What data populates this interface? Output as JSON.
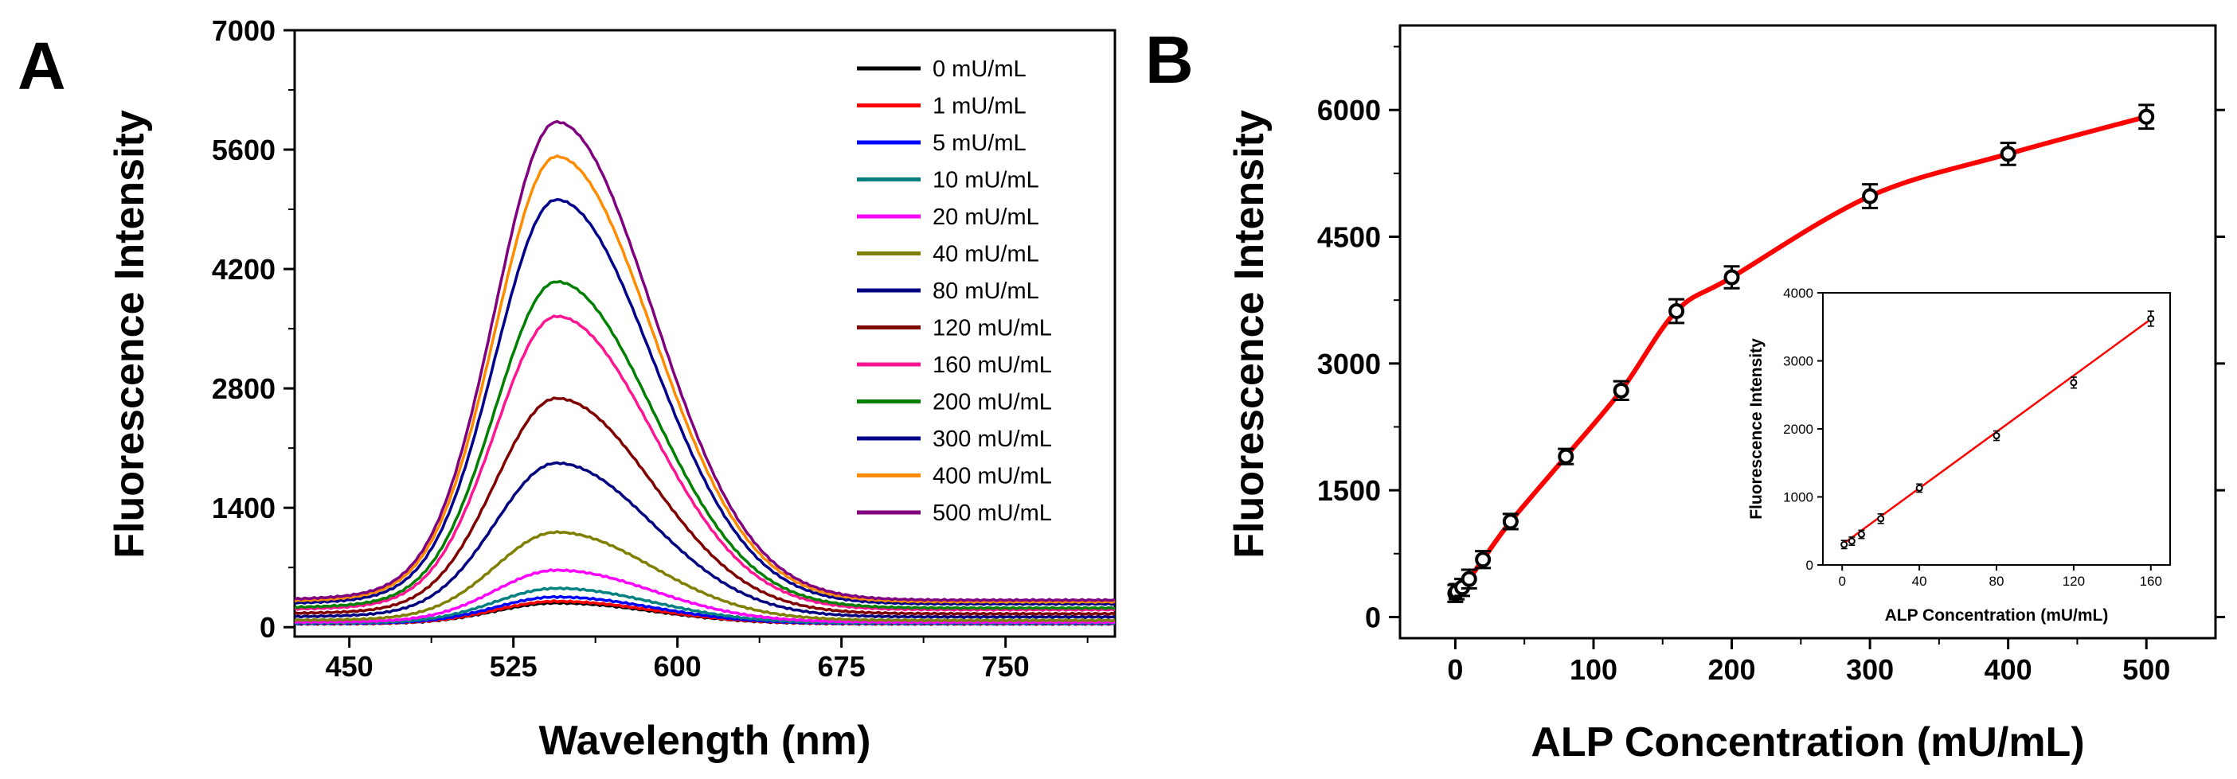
{
  "chart_data": [
    {
      "type": "line",
      "panel_label": "A",
      "xlabel": "Wavelength (nm)",
      "ylabel": "Fluorescence Intensity",
      "xlim": [
        425,
        800
      ],
      "ylim": [
        -110,
        7000
      ],
      "xticks": [
        450,
        525,
        600,
        675,
        750
      ],
      "yticks": [
        0,
        1400,
        2800,
        4200,
        5600,
        7000
      ],
      "series": [
        {
          "name": "0 mU/mL",
          "peak": 280,
          "color": "#000000"
        },
        {
          "name": "1 mU/mL",
          "peak": 300,
          "color": "#ff0000"
        },
        {
          "name": "5 mU/mL",
          "peak": 350,
          "color": "#0000ff"
        },
        {
          "name": "10 mU/mL",
          "peak": 450,
          "color": "#008080"
        },
        {
          "name": "20 mU/mL",
          "peak": 660,
          "color": "#ff00ff"
        },
        {
          "name": "40 mU/mL",
          "peak": 1100,
          "color": "#808000"
        },
        {
          "name": "80 mU/mL",
          "peak": 1900,
          "color": "#000080"
        },
        {
          "name": "120 mU/mL",
          "peak": 2650,
          "color": "#800000"
        },
        {
          "name": "160 mU/mL",
          "peak": 3600,
          "color": "#ff1493"
        },
        {
          "name": "200 mU/mL",
          "peak": 4000,
          "color": "#008000"
        },
        {
          "name": "300 mU/mL",
          "peak": 4950,
          "color": "#00008b"
        },
        {
          "name": "400 mU/mL",
          "peak": 5450,
          "color": "#ff8c00"
        },
        {
          "name": "500 mU/mL",
          "peak": 5850,
          "color": "#800080"
        }
      ],
      "peak_wavelength": 545
    },
    {
      "type": "scatter",
      "panel_label": "B",
      "xlabel": "ALP Concentration  (mU/mL)",
      "ylabel": "Fluorescence Intensity",
      "xlim": [
        -40,
        550
      ],
      "ylim": [
        -250,
        7000
      ],
      "xticks": [
        0,
        100,
        200,
        300,
        400,
        500
      ],
      "yticks": [
        0,
        1500,
        3000,
        4500,
        6000
      ],
      "points": [
        {
          "x": 0,
          "y": 280,
          "err": 100
        },
        {
          "x": 1,
          "y": 300,
          "err": 90
        },
        {
          "x": 5,
          "y": 350,
          "err": 100
        },
        {
          "x": 10,
          "y": 450,
          "err": 110
        },
        {
          "x": 20,
          "y": 680,
          "err": 100
        },
        {
          "x": 40,
          "y": 1130,
          "err": 90
        },
        {
          "x": 80,
          "y": 1900,
          "err": 90
        },
        {
          "x": 120,
          "y": 2680,
          "err": 110
        },
        {
          "x": 160,
          "y": 3620,
          "err": 140
        },
        {
          "x": 200,
          "y": 4020,
          "err": 130
        },
        {
          "x": 300,
          "y": 4980,
          "err": 140
        },
        {
          "x": 400,
          "y": 5480,
          "err": 130
        },
        {
          "x": 500,
          "y": 5920,
          "err": 140
        }
      ],
      "fit_color": "#ff0000"
    },
    {
      "type": "scatter",
      "panel_label": "inset",
      "xlabel": "ALP Concentration  (mU/mL)",
      "ylabel": "Fluorescence Intensity",
      "xlim": [
        -10,
        170
      ],
      "ylim": [
        0,
        4000
      ],
      "xticks": [
        0,
        40,
        80,
        120,
        160
      ],
      "yticks": [
        0,
        1000,
        2000,
        3000,
        4000
      ],
      "points": [
        {
          "x": 1,
          "y": 300,
          "err": 60
        },
        {
          "x": 5,
          "y": 350,
          "err": 60
        },
        {
          "x": 10,
          "y": 450,
          "err": 60
        },
        {
          "x": 20,
          "y": 680,
          "err": 70
        },
        {
          "x": 40,
          "y": 1130,
          "err": 60
        },
        {
          "x": 80,
          "y": 1900,
          "err": 70
        },
        {
          "x": 120,
          "y": 2680,
          "err": 80
        },
        {
          "x": 160,
          "y": 3620,
          "err": 110
        }
      ],
      "fit": {
        "slope": 20.7,
        "intercept": 300
      },
      "fit_color": "#ff0000"
    }
  ]
}
